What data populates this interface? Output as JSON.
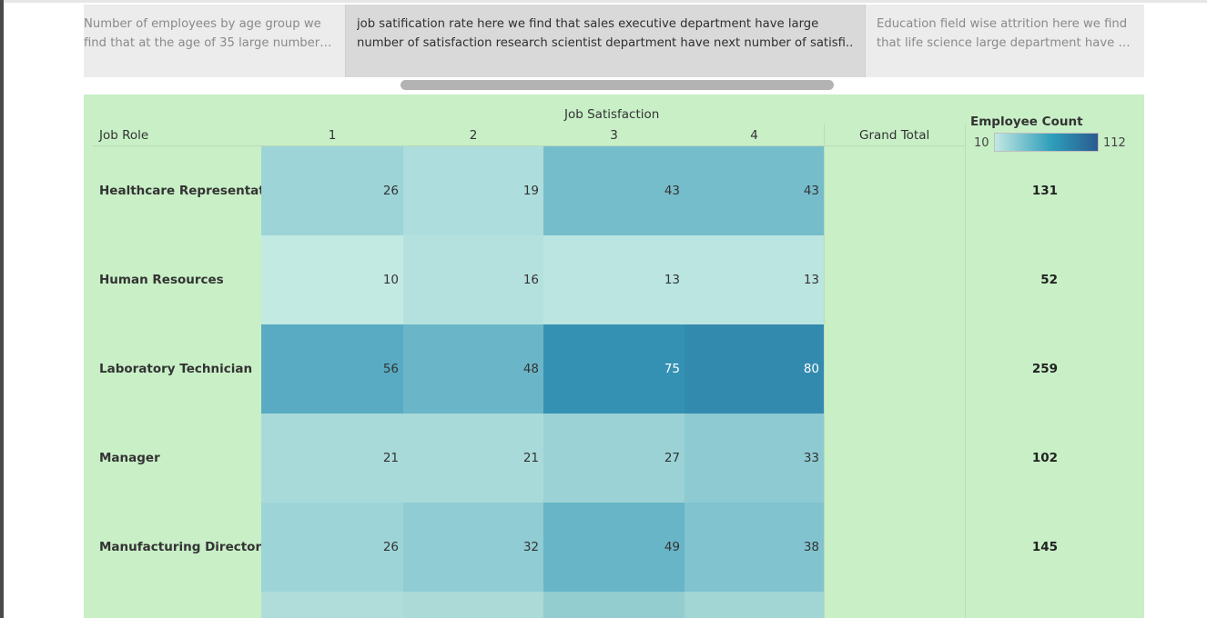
{
  "story_points": [
    {
      "text": "Number of employees by age group we find that at the age of 35 large number o.."
    },
    {
      "text": "job satification rate here we find that sales executive department have large number of satisfaction research scientist department have next number of satisfi.."
    },
    {
      "text": "Education field wise attrition here we find that life science large department have in .."
    }
  ],
  "chart_data": {
    "type": "heatmap",
    "title": "",
    "column_header": "Job Satisfaction",
    "row_header": "Job Role",
    "columns": [
      "1",
      "2",
      "3",
      "4"
    ],
    "total_header": "Grand Total",
    "rows": [
      {
        "label": "Healthcare Representative",
        "values": [
          26,
          19,
          43,
          43
        ],
        "total": 131
      },
      {
        "label": "Human Resources",
        "values": [
          10,
          16,
          13,
          13
        ],
        "total": 52
      },
      {
        "label": "Laboratory Technician",
        "values": [
          56,
          48,
          75,
          80
        ],
        "total": 259
      },
      {
        "label": "Manager",
        "values": [
          21,
          21,
          27,
          33
        ],
        "total": 102
      },
      {
        "label": "Manufacturing Director",
        "values": [
          26,
          32,
          49,
          38
        ],
        "total": 145
      }
    ],
    "legend": {
      "title": "Employee Count",
      "min": 10,
      "max": 112,
      "min_color": "#c2e8e3",
      "max_color": "#2a5b8f",
      "placement": "top-right"
    }
  },
  "colors": {
    "dashboard_bg": "#c8efc6",
    "story_bg": "#ececec",
    "story_active_bg": "#d9d9d9"
  }
}
